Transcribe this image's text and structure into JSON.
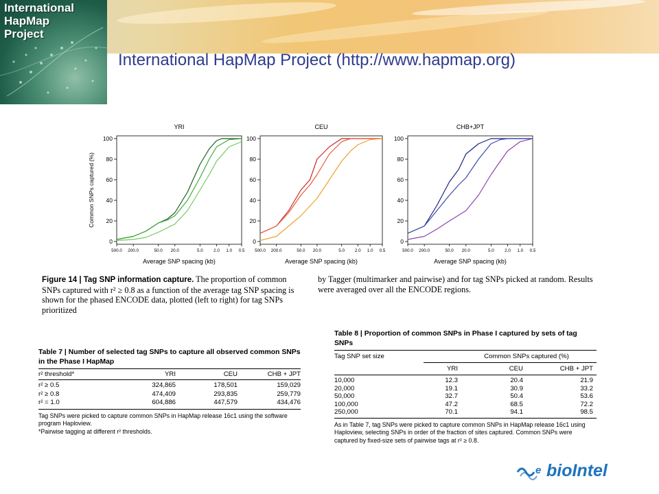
{
  "header": {
    "logo_lines": [
      "International",
      "HapMap",
      "Project"
    ],
    "title": "International HapMap Project (http://www.hapmap.org)"
  },
  "chart_data": [
    {
      "type": "line",
      "title": "YRI",
      "xlabel": "Average SNP spacing (kb)",
      "ylabel": "Common SNPs captured (%)",
      "x_ticks": [
        "500.0",
        "200.0",
        "50.0",
        "20.0",
        "5.0",
        "2.0",
        "1.0",
        "0.5"
      ],
      "x_tick_values": [
        500,
        200,
        50,
        20,
        5,
        2,
        1,
        0.5
      ],
      "x_scale": "log-reversed",
      "ylim": [
        0,
        100
      ],
      "y_ticks": [
        0,
        20,
        40,
        60,
        80,
        100
      ],
      "series": [
        {
          "color": "#1b5e20",
          "x": [
            500,
            200,
            100,
            50,
            30,
            20,
            10,
            5,
            3,
            2,
            1.5,
            1,
            0.5
          ],
          "y": [
            2,
            5,
            10,
            18,
            22,
            28,
            48,
            75,
            90,
            98,
            100,
            100,
            100
          ]
        },
        {
          "color": "#3faa3a",
          "x": [
            500,
            200,
            100,
            50,
            30,
            20,
            10,
            5,
            3,
            2,
            1,
            0.5
          ],
          "y": [
            2,
            5,
            10,
            18,
            21,
            25,
            40,
            62,
            80,
            92,
            99,
            100
          ]
        },
        {
          "color": "#72c85a",
          "x": [
            500,
            200,
            100,
            50,
            20,
            10,
            5,
            3,
            2,
            1,
            0.5
          ],
          "y": [
            1,
            2,
            4,
            9,
            17,
            30,
            50,
            65,
            78,
            92,
            97
          ]
        }
      ]
    },
    {
      "type": "line",
      "title": "CEU",
      "xlabel": "Average SNP spacing (kb)",
      "x_ticks": [
        "500.0",
        "200.0",
        "50.0",
        "20.0",
        "5.0",
        "2.0",
        "1.0",
        "0.5"
      ],
      "x_tick_values": [
        500,
        200,
        50,
        20,
        5,
        2,
        1,
        0.5
      ],
      "x_scale": "log-reversed",
      "ylim": [
        0,
        100
      ],
      "y_ticks": [
        0,
        20,
        40,
        60,
        80,
        100
      ],
      "series": [
        {
          "color": "#c62828",
          "x": [
            500,
            200,
            100,
            50,
            30,
            20,
            10,
            5,
            3,
            2,
            1,
            0.5
          ],
          "y": [
            8,
            15,
            30,
            50,
            60,
            80,
            92,
            100,
            100,
            100,
            100,
            100
          ]
        },
        {
          "color": "#e8593a",
          "x": [
            500,
            200,
            100,
            50,
            30,
            20,
            10,
            5,
            3,
            2,
            1,
            0.5
          ],
          "y": [
            8,
            15,
            28,
            45,
            55,
            65,
            85,
            97,
            100,
            100,
            100,
            100
          ]
        },
        {
          "color": "#f0a030",
          "x": [
            500,
            200,
            100,
            50,
            20,
            10,
            5,
            3,
            2,
            1,
            0.5
          ],
          "y": [
            1,
            5,
            15,
            25,
            42,
            60,
            78,
            88,
            94,
            99,
            100
          ]
        }
      ]
    },
    {
      "type": "line",
      "title": "CHB+JPT",
      "xlabel": "Average SNP spacing (kb)",
      "x_ticks": [
        "500.0",
        "200.0",
        "50.0",
        "20.0",
        "5.0",
        "2.0",
        "1.0",
        "0.5"
      ],
      "x_tick_values": [
        500,
        200,
        50,
        20,
        5,
        2,
        1,
        0.5
      ],
      "x_scale": "log-reversed",
      "ylim": [
        0,
        100
      ],
      "y_ticks": [
        0,
        20,
        40,
        60,
        80,
        100
      ],
      "series": [
        {
          "color": "#1a237e",
          "x": [
            500,
            200,
            100,
            50,
            30,
            20,
            10,
            5,
            3,
            2,
            1,
            0.5
          ],
          "y": [
            8,
            15,
            35,
            58,
            70,
            85,
            95,
            100,
            100,
            100,
            100,
            100
          ]
        },
        {
          "color": "#3949ab",
          "x": [
            500,
            200,
            100,
            50,
            30,
            20,
            10,
            5,
            3,
            2,
            1,
            0.5
          ],
          "y": [
            8,
            15,
            30,
            45,
            55,
            62,
            80,
            95,
            99,
            100,
            100,
            100
          ]
        },
        {
          "color": "#8e44ad",
          "x": [
            500,
            200,
            100,
            50,
            20,
            10,
            5,
            3,
            2,
            1,
            0.5
          ],
          "y": [
            2,
            5,
            12,
            20,
            30,
            45,
            65,
            78,
            88,
            97,
            100
          ]
        }
      ]
    }
  ],
  "caption": {
    "figure_label": "Figure 14 | Tag SNP information capture.",
    "col1_text": "The proportion of common SNPs captured with r² ≥ 0.8 as a function of the average tag SNP spacing is shown for the phased ENCODE data, plotted (left to right) for tag SNPs prioritized",
    "col2_text": "by Tagger (multimarker and pairwise) and for tag SNPs picked at random. Results were averaged over all the ENCODE regions."
  },
  "table7": {
    "title": "Table 7 | Number of selected tag SNPs to capture all observed common SNPs in the Phase I HapMap",
    "headers": [
      "r² threshold*",
      "YRI",
      "CEU",
      "CHB + JPT"
    ],
    "rows": [
      [
        "r² ≥ 0.5",
        "324,865",
        "178,501",
        "159,029"
      ],
      [
        "r² ≥ 0.8",
        "474,409",
        "293,835",
        "259,779"
      ],
      [
        "r² = 1.0",
        "604,886",
        "447,579",
        "434,476"
      ]
    ],
    "note1": "Tag SNPs were picked to capture common SNPs in HapMap release 16c1 using the software program Haploview.",
    "note2": "*Pairwise tagging at different r² thresholds."
  },
  "table8": {
    "title": "Table 8 | Proportion of common SNPs in Phase I captured by sets of tag SNPs",
    "group_left": "Tag SNP set size",
    "group_right": "Common SNPs captured (%)",
    "headers": [
      "",
      "YRI",
      "CEU",
      "CHB + JPT"
    ],
    "rows": [
      [
        "10,000",
        "12.3",
        "20.4",
        "21.9"
      ],
      [
        "20,000",
        "19.1",
        "30.9",
        "33.2"
      ],
      [
        "50,000",
        "32.7",
        "50.4",
        "53.6"
      ],
      [
        "100,000",
        "47.2",
        "68.5",
        "72.2"
      ],
      [
        "250,000",
        "70.1",
        "94.1",
        "98.5"
      ]
    ],
    "note": "As in Table 7, tag SNPs were picked to capture common SNPs in HapMap release 16c1 using Haploview, selecting SNPs in order of the fraction of sites captured. Common SNPs were captured by fixed-size sets of pairwise tags at r² ≥ 0.8."
  },
  "footer_logo": "bioIntel"
}
